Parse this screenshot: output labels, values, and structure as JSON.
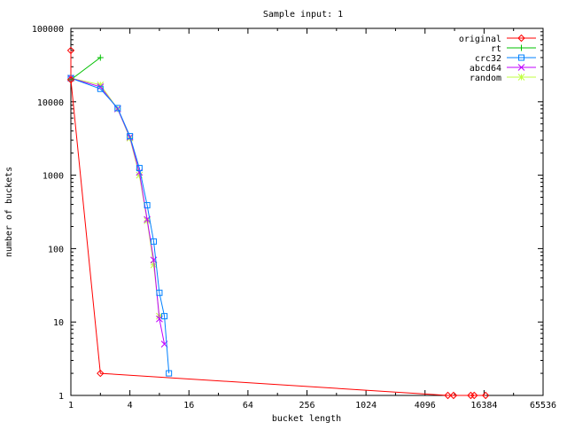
{
  "chart_data": {
    "type": "line",
    "title": "Sample input: 1",
    "xlabel": "bucket length",
    "ylabel": "number of buckets",
    "x_scale": "log2",
    "y_scale": "log10",
    "xlim": [
      1,
      65536
    ],
    "ylim": [
      1,
      100000
    ],
    "x_ticks": [
      1,
      4,
      16,
      64,
      256,
      1024,
      4096,
      16384,
      65536
    ],
    "x_tick_labels": [
      "1",
      "4",
      "16",
      "64",
      "256",
      "1024",
      "4096",
      "16384",
      "65536"
    ],
    "y_ticks": [
      1,
      10,
      100,
      1000,
      10000,
      100000
    ],
    "y_tick_labels": [
      "1",
      "10",
      "100",
      "1000",
      "10000",
      "100000"
    ],
    "grid": false,
    "legend_position": "top-right",
    "series": [
      {
        "name": "original",
        "color": "#ff0000",
        "marker": "diamond",
        "points": [
          [
            1,
            50000
          ],
          [
            1,
            20000
          ],
          [
            2,
            2
          ],
          [
            7000,
            1
          ],
          [
            8000,
            1
          ],
          [
            12000,
            1
          ],
          [
            13000,
            1
          ],
          [
            17000,
            1
          ]
        ]
      },
      {
        "name": "rt",
        "color": "#00c000",
        "marker": "plus",
        "points": [
          [
            1,
            20000
          ],
          [
            2,
            40000
          ]
        ]
      },
      {
        "name": "crc32",
        "color": "#0080ff",
        "marker": "square",
        "points": [
          [
            1,
            21000
          ],
          [
            2,
            15000
          ],
          [
            3,
            8200
          ],
          [
            4,
            3400
          ],
          [
            5,
            1250
          ],
          [
            6,
            390
          ],
          [
            7,
            125
          ],
          [
            8,
            25
          ],
          [
            9,
            12
          ],
          [
            10,
            2
          ]
        ]
      },
      {
        "name": "abcd64",
        "color": "#c000ff",
        "marker": "x",
        "points": [
          [
            1,
            21000
          ],
          [
            2,
            16000
          ],
          [
            3,
            8000
          ],
          [
            4,
            3300
          ],
          [
            5,
            1100
          ],
          [
            6,
            250
          ],
          [
            7,
            70
          ],
          [
            8,
            11
          ],
          [
            9,
            5
          ]
        ]
      },
      {
        "name": "random",
        "color": "#c0ff40",
        "marker": "star",
        "points": [
          [
            1,
            21000
          ],
          [
            2,
            17000
          ],
          [
            3,
            8000
          ],
          [
            4,
            3200
          ],
          [
            5,
            1000
          ],
          [
            6,
            240
          ],
          [
            7,
            60
          ],
          [
            8,
            12
          ]
        ]
      }
    ]
  }
}
